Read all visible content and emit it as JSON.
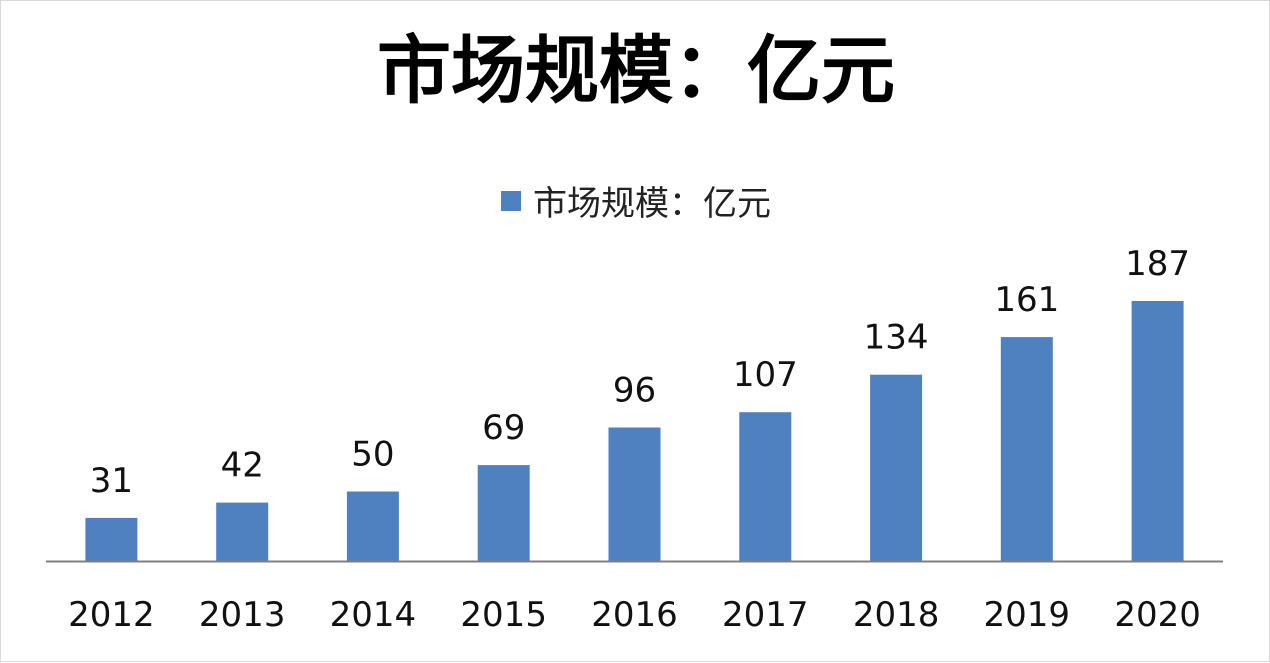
{
  "chart_data": {
    "type": "bar",
    "title": "市场规模：亿元",
    "categories": [
      "2012",
      "2013",
      "2014",
      "2015",
      "2016",
      "2017",
      "2018",
      "2019",
      "2020"
    ],
    "series": [
      {
        "name": "市场规模：亿元",
        "values": [
          31,
          42,
          50,
          69,
          96,
          107,
          134,
          161,
          187
        ],
        "color": "#4f81c1"
      }
    ],
    "data_labels": true,
    "ylim": [
      0,
      187
    ],
    "legend_position": "top-center",
    "grid": false,
    "axis_color": "#7f7f7f"
  }
}
